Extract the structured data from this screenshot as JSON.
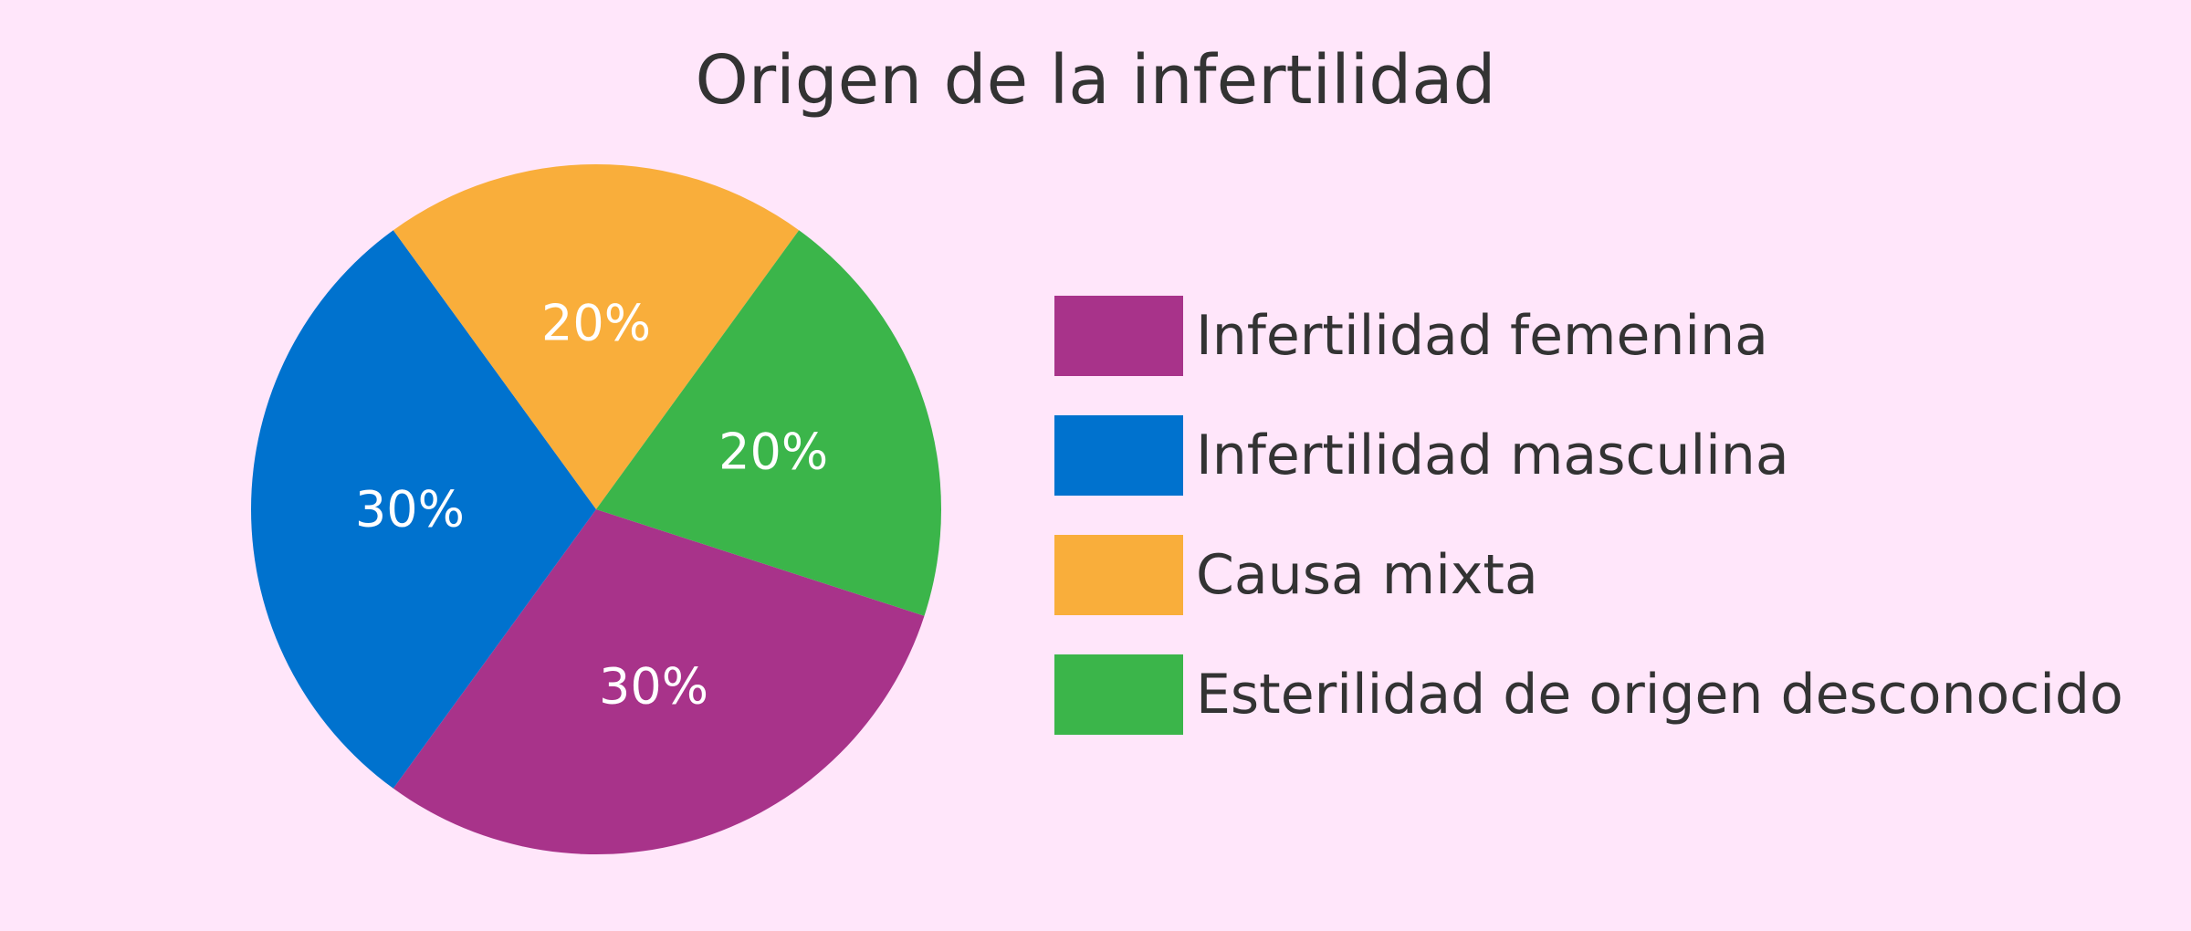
{
  "chart_data": {
    "type": "pie",
    "title": "Origen de la infertilidad",
    "slices": [
      {
        "label": "Infertilidad femenina",
        "value": 30,
        "display": "30%",
        "color": "#a8338a"
      },
      {
        "label": "Infertilidad masculina",
        "value": 30,
        "display": "30%",
        "color": "#0072ce"
      },
      {
        "label": "Causa mixta",
        "value": 20,
        "display": "20%",
        "color": "#f9ae3b"
      },
      {
        "label": "Esterilidad de origen desconocido",
        "value": 20,
        "display": "20%",
        "color": "#3bb54a"
      }
    ],
    "legend_position": "right",
    "value_labels": "inside slices, white"
  },
  "colors": {
    "background": "#ffe6fa",
    "text": "#333333"
  }
}
